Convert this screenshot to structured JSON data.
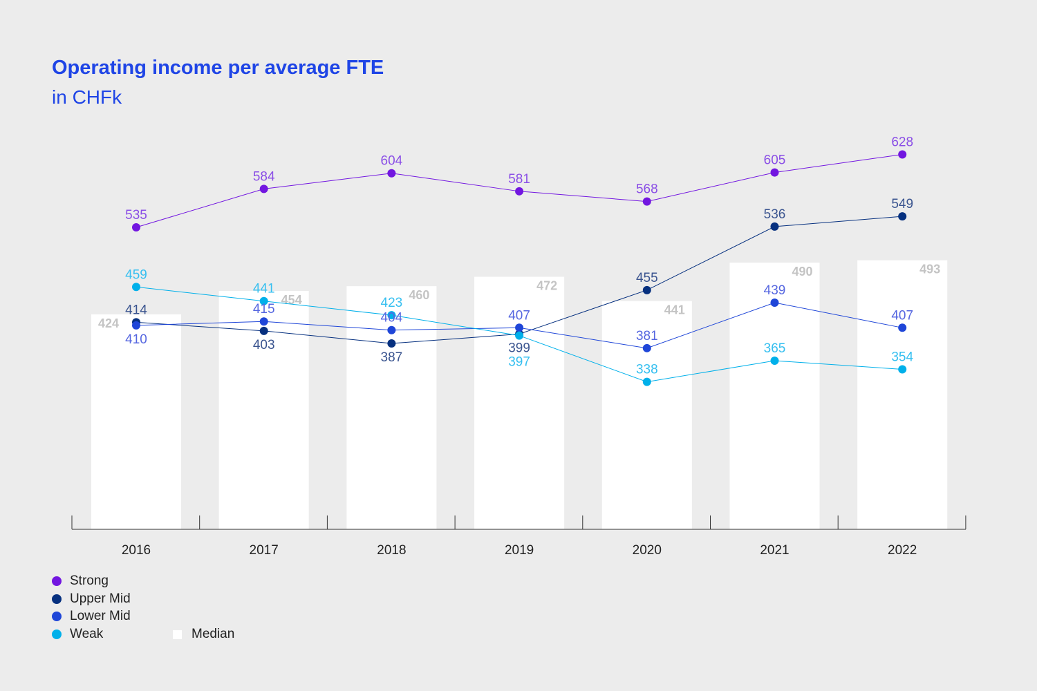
{
  "chart_data": {
    "type": "line",
    "title": "Operating income per average FTE",
    "subtitle": "in CHFk",
    "categories": [
      "2016",
      "2017",
      "2018",
      "2019",
      "2020",
      "2021",
      "2022"
    ],
    "ylim": [
      150,
      700
    ],
    "grid": false,
    "legend_placement": "bottom-left",
    "series": [
      {
        "name": "Strong",
        "color": "#7216e0",
        "label_color": "#8a4ee6",
        "values": [
          535,
          584,
          604,
          581,
          568,
          605,
          628
        ]
      },
      {
        "name": "Upper Mid",
        "color": "#06307f",
        "label_color": "#3a548f",
        "values": [
          414,
          403,
          387,
          399,
          455,
          536,
          549
        ]
      },
      {
        "name": "Lower Mid",
        "color": "#1f46d8",
        "label_color": "#5566e0",
        "values": [
          410,
          415,
          404,
          407,
          381,
          439,
          407
        ]
      },
      {
        "name": "Weak",
        "color": "#00b0ea",
        "label_color": "#35bff0",
        "values": [
          459,
          441,
          423,
          397,
          338,
          365,
          354
        ]
      }
    ],
    "bars": {
      "name": "Median",
      "color": "#ffffff",
      "label_color": "#c4c4c4",
      "values": [
        424,
        454,
        460,
        472,
        441,
        490,
        493
      ]
    }
  }
}
